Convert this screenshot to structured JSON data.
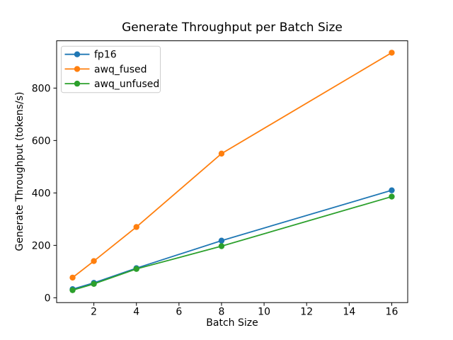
{
  "chart_data": {
    "type": "line",
    "title": "Generate Throughput per Batch Size",
    "xlabel": "Batch Size",
    "ylabel": "Generate Throughput (tokens/s)",
    "x": [
      1,
      2,
      4,
      8,
      16
    ],
    "series": [
      {
        "name": "fp16",
        "color": "#1f77b4",
        "values": [
          33,
          57,
          113,
          218,
          410
        ]
      },
      {
        "name": "awq_fused",
        "color": "#ff7f0e",
        "values": [
          77,
          140,
          270,
          550,
          935
        ]
      },
      {
        "name": "awq_unfused",
        "color": "#2ca02c",
        "values": [
          29,
          53,
          110,
          197,
          386
        ]
      }
    ],
    "marker": "o",
    "xlim": [
      0.25,
      16.75
    ],
    "ylim": [
      -18.4,
      980.4
    ],
    "xticks": [
      2,
      4,
      6,
      8,
      10,
      12,
      14,
      16
    ],
    "yticks": [
      0,
      200,
      400,
      600,
      800
    ],
    "grid": false,
    "legend_position": "upper left",
    "background_color": "#ffffff",
    "axis_color": "#000000",
    "legend_border_color": "#cccccc"
  }
}
